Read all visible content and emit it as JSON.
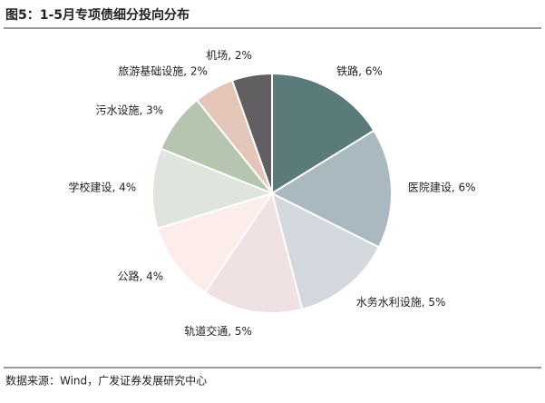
{
  "chart_data": {
    "type": "pie",
    "title": "图5：1-5月专项债细分投向分布",
    "categories": [
      "铁路",
      "医院建设",
      "水务水利设施",
      "轨道交通",
      "公路",
      "学校建设",
      "污水设施",
      "旅游基础设施",
      "机场"
    ],
    "values": [
      6,
      6,
      5,
      5,
      4,
      4,
      3,
      2,
      2
    ],
    "value_labels": [
      "6%",
      "6%",
      "5%",
      "5%",
      "4%",
      "4%",
      "3%",
      "2%",
      "2%"
    ],
    "label_separator": ", ",
    "colors": [
      "#5b7b7a",
      "#a9b9bf",
      "#d3d8df",
      "#f0e2e2",
      "#fcecea",
      "#dfe4dc",
      "#b5c5b0",
      "#e3c6b7",
      "#625f62"
    ],
    "source": "数据来源：Wind，广发证券发展研究中心"
  }
}
